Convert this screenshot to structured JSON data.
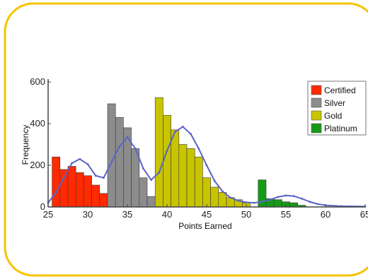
{
  "colors": {
    "frame": "#f5c400",
    "curve": "#5a63c6",
    "axis": "#444444"
  },
  "chart_data": {
    "type": "bar",
    "xlabel": "Points Earned",
    "ylabel": "Frequency",
    "xlim": [
      25,
      65
    ],
    "ylim": [
      0,
      600
    ],
    "xticks": [
      25,
      30,
      35,
      40,
      45,
      50,
      55,
      60,
      65
    ],
    "yticks": [
      0,
      200,
      400,
      600
    ],
    "bin_width": 1,
    "legend_position": "top-right",
    "series": [
      {
        "name": "Certified",
        "color": "#ff2a00",
        "x": [
          26,
          27,
          28,
          29,
          30,
          31,
          32
        ],
        "values": [
          240,
          180,
          195,
          165,
          150,
          105,
          65
        ]
      },
      {
        "name": "Silver",
        "color": "#8c8c8c",
        "x": [
          33,
          34,
          35,
          36,
          37,
          38
        ],
        "values": [
          495,
          430,
          380,
          280,
          140,
          50
        ]
      },
      {
        "name": "Gold",
        "color": "#c8c400",
        "x": [
          39,
          40,
          41,
          42,
          43,
          44,
          45,
          46,
          47,
          48,
          49,
          50
        ],
        "values": [
          525,
          440,
          370,
          300,
          280,
          240,
          140,
          95,
          70,
          45,
          35,
          20
        ]
      },
      {
        "name": "Platinum",
        "color": "#159a15",
        "x": [
          52,
          53,
          54,
          55,
          56,
          57
        ],
        "values": [
          130,
          40,
          35,
          25,
          20,
          8
        ]
      }
    ],
    "density_curve": {
      "x": [
        25,
        26,
        27,
        28,
        29,
        30,
        31,
        32,
        33,
        34,
        35,
        36,
        37,
        38,
        39,
        40,
        41,
        42,
        43,
        44,
        45,
        46,
        47,
        48,
        49,
        50,
        51,
        52,
        53,
        54,
        55,
        56,
        57,
        58,
        59,
        60,
        62,
        65
      ],
      "y": [
        20,
        70,
        140,
        210,
        230,
        205,
        150,
        140,
        215,
        290,
        335,
        280,
        185,
        130,
        165,
        270,
        360,
        385,
        350,
        280,
        200,
        125,
        75,
        45,
        30,
        22,
        20,
        25,
        35,
        48,
        55,
        52,
        40,
        25,
        14,
        8,
        4,
        2
      ]
    }
  }
}
